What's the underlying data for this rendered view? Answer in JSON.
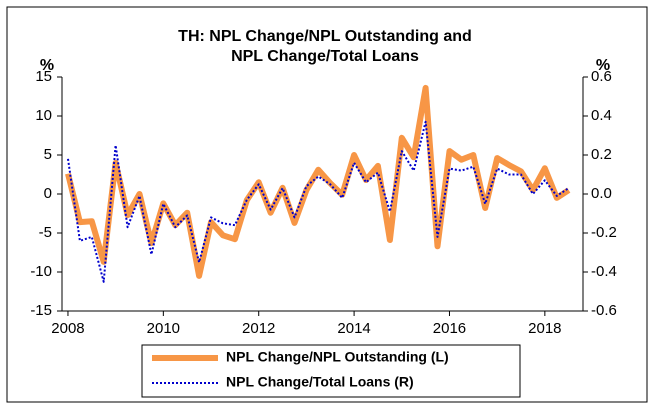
{
  "chart_data": {
    "type": "line",
    "title": [
      "TH: NPL Change/NPL Outstanding and",
      "NPL Change/Total Loans"
    ],
    "y_label": "%",
    "y2_label": "%",
    "x": [
      2008,
      2008.25,
      2008.5,
      2008.75,
      2009,
      2009.25,
      2009.5,
      2009.75,
      2010,
      2010.25,
      2010.5,
      2010.75,
      2011,
      2011.25,
      2011.5,
      2011.75,
      2012,
      2012.25,
      2012.5,
      2012.75,
      2013,
      2013.25,
      2013.5,
      2013.75,
      2014,
      2014.25,
      2014.5,
      2014.75,
      2015,
      2015.25,
      2015.5,
      2015.75,
      2016,
      2016.25,
      2016.5,
      2016.75,
      2017,
      2017.25,
      2017.5,
      2017.75,
      2018,
      2018.25,
      2018.5
    ],
    "series": [
      {
        "name": "NPL Change/NPL Outstanding (L)",
        "color": "#f79646",
        "axis": "y",
        "values": [
          2.6,
          -3.6,
          -3.5,
          -8.7,
          4.0,
          -2.7,
          0,
          -6.3,
          -1.2,
          -4,
          -2.4,
          -10.5,
          -3.6,
          -5.3,
          -5.8,
          -0.8,
          1.5,
          -2.4,
          0.8,
          -3.7,
          0.5,
          3.1,
          1.4,
          -0.1,
          5.0,
          1.8,
          3.6,
          -5.9,
          7.2,
          4.7,
          13.6,
          -6.7,
          5.5,
          4.4,
          5.0,
          -1.8,
          4.6,
          3.7,
          2.9,
          0.5,
          3.3,
          -0.5,
          0.5
        ]
      },
      {
        "name": "NPL Change/Total Loans (R)",
        "color": "#0000cc",
        "axis": "y2",
        "values": [
          0.18,
          -0.24,
          -0.22,
          -0.45,
          0.25,
          -0.17,
          -0.01,
          -0.31,
          -0.05,
          -0.17,
          -0.11,
          -0.35,
          -0.12,
          -0.15,
          -0.16,
          -0.03,
          0.05,
          -0.08,
          0.03,
          -0.12,
          0.04,
          0.09,
          0.05,
          -0.02,
          0.16,
          0.06,
          0.11,
          -0.09,
          0.22,
          0.12,
          0.37,
          -0.22,
          0.13,
          0.12,
          0.14,
          -0.05,
          0.13,
          0.1,
          0.1,
          0.0,
          0.07,
          -0.01,
          0.03
        ]
      }
    ],
    "xlim": [
      2007.875,
      2018.8
    ],
    "xticks": [
      2008,
      2010,
      2012,
      2014,
      2016,
      2018
    ],
    "ylim": [
      -15,
      15
    ],
    "yticks": [
      15,
      10,
      5,
      0,
      -5,
      -10,
      -15
    ],
    "y2lim": [
      -0.6,
      0.6
    ],
    "y2ticks": [
      0.6,
      0.4,
      0.2,
      {
        "value": 0,
        "label": "0.0"
      },
      -0.2,
      -0.4,
      -0.6
    ],
    "legend": "bottom"
  }
}
